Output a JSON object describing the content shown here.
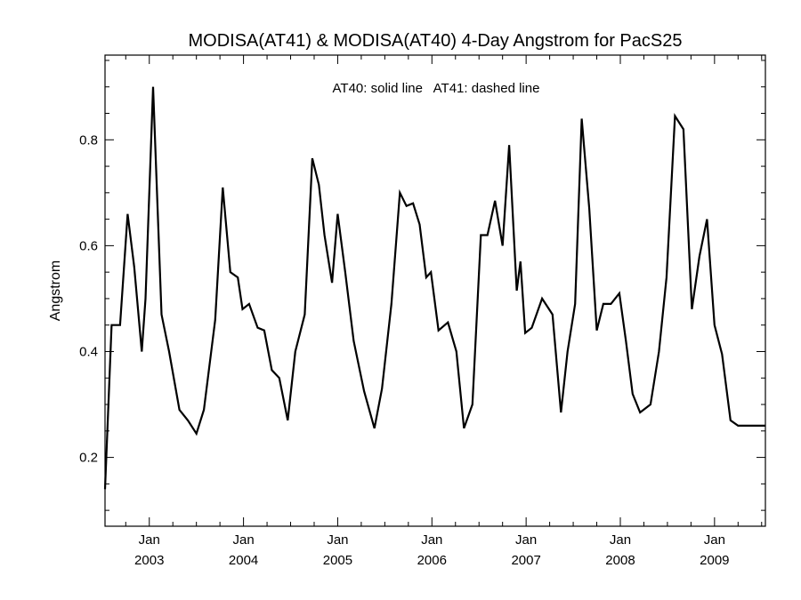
{
  "chart_data": {
    "type": "line",
    "title": "MODISA(AT41) & MODISA(AT40) 4-Day Angstrom for PacS25",
    "annotation": "AT40: solid line   AT41: dashed line",
    "xlabel": "",
    "ylabel": "Angstrom",
    "xlim": [
      2002.53,
      2009.54
    ],
    "ylim": [
      0.07,
      0.96
    ],
    "yticks": [
      0.2,
      0.4,
      0.6,
      0.8
    ],
    "xticks": [
      {
        "x": 2003.0,
        "top": "Jan",
        "bottom": "2003"
      },
      {
        "x": 2004.0,
        "top": "Jan",
        "bottom": "2004"
      },
      {
        "x": 2005.0,
        "top": "Jan",
        "bottom": "2005"
      },
      {
        "x": 2006.0,
        "top": "Jan",
        "bottom": "2006"
      },
      {
        "x": 2007.0,
        "top": "Jan",
        "bottom": "2007"
      },
      {
        "x": 2008.0,
        "top": "Jan",
        "bottom": "2008"
      },
      {
        "x": 2009.0,
        "top": "Jan",
        "bottom": "2009"
      }
    ],
    "series": [
      {
        "line_style": "solid",
        "color": "#000000",
        "x": [
          2002.53,
          2002.6,
          2002.69,
          2002.77,
          2002.84,
          2002.92,
          2002.96,
          2003.04,
          2003.13,
          2003.21,
          2003.32,
          2003.41,
          2003.5,
          2003.58,
          2003.7,
          2003.78,
          2003.86,
          2003.94,
          2003.99,
          2004.06,
          2004.15,
          2004.22,
          2004.3,
          2004.38,
          2004.47,
          2004.55,
          2004.65,
          2004.73,
          2004.8,
          2004.86,
          2004.94,
          2005.0,
          2005.08,
          2005.17,
          2005.28,
          2005.39,
          2005.47,
          2005.57,
          2005.66,
          2005.73,
          2005.8,
          2005.87,
          2005.94,
          2005.99,
          2006.07,
          2006.17,
          2006.26,
          2006.34,
          2006.43,
          2006.52,
          2006.59,
          2006.67,
          2006.75,
          2006.82,
          2006.9,
          2006.94,
          2006.99,
          2007.06,
          2007.17,
          2007.28,
          2007.37,
          2007.44,
          2007.52,
          2007.59,
          2007.67,
          2007.75,
          2007.82,
          2007.9,
          2007.99,
          2008.06,
          2008.13,
          2008.21,
          2008.32,
          2008.41,
          2008.49,
          2008.58,
          2008.67,
          2008.76,
          2008.84,
          2008.92,
          2009.0,
          2009.08,
          2009.17,
          2009.25,
          2009.34,
          2009.41,
          2009.47,
          2009.54
        ],
        "y": [
          0.14,
          0.45,
          0.45,
          0.66,
          0.56,
          0.4,
          0.5,
          0.9,
          0.47,
          0.4,
          0.29,
          0.27,
          0.245,
          0.29,
          0.46,
          0.71,
          0.55,
          0.54,
          0.48,
          0.49,
          0.445,
          0.44,
          0.365,
          0.35,
          0.27,
          0.4,
          0.47,
          0.765,
          0.715,
          0.62,
          0.53,
          0.66,
          0.55,
          0.42,
          0.325,
          0.255,
          0.33,
          0.49,
          0.7,
          0.675,
          0.68,
          0.64,
          0.54,
          0.55,
          0.44,
          0.455,
          0.4,
          0.255,
          0.3,
          0.62,
          0.62,
          0.685,
          0.6,
          0.79,
          0.515,
          0.57,
          0.435,
          0.445,
          0.5,
          0.47,
          0.285,
          0.4,
          0.49,
          0.84,
          0.67,
          0.44,
          0.49,
          0.49,
          0.51,
          0.42,
          0.32,
          0.285,
          0.3,
          0.4,
          0.54,
          0.845,
          0.82,
          0.48,
          0.58,
          0.65,
          0.45,
          0.395,
          0.27,
          0.26,
          0.26,
          0.26,
          0.26,
          0.26
        ]
      }
    ]
  }
}
